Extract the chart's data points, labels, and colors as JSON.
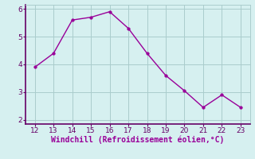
{
  "x": [
    12,
    13,
    14,
    15,
    16,
    17,
    18,
    19,
    20,
    21,
    22,
    23
  ],
  "y": [
    3.9,
    4.4,
    5.6,
    5.7,
    5.9,
    5.3,
    4.4,
    3.6,
    3.05,
    2.45,
    2.9,
    2.45
  ],
  "line_color": "#990099",
  "marker": "o",
  "markersize": 2.5,
  "linewidth": 1.0,
  "xlabel": "Windchill (Refroidissement éolien,°C)",
  "xlabel_color": "#990099",
  "background_color": "#d6f0f0",
  "grid_color": "#aacccc",
  "spine_color": "#660066",
  "tick_color": "#660066",
  "xlim": [
    11.5,
    23.5
  ],
  "ylim": [
    1.85,
    6.15
  ],
  "yticks": [
    2,
    3,
    4,
    5,
    6
  ],
  "xticks": [
    12,
    13,
    14,
    15,
    16,
    17,
    18,
    19,
    20,
    21,
    22,
    23
  ],
  "xlabel_fontsize": 7.0,
  "tick_fontsize": 6.5
}
